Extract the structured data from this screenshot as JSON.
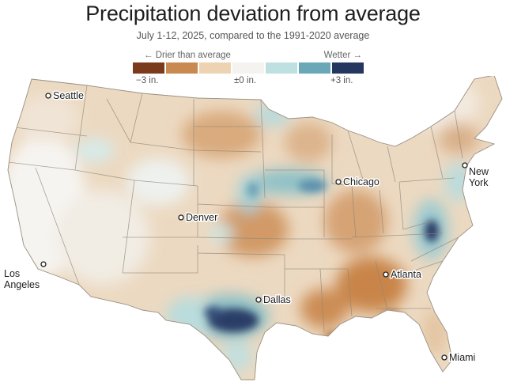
{
  "title": "Precipitation deviation from average",
  "subtitle": "July 1-12, 2025, compared to the 1991-2020 average",
  "legend": {
    "left_label": "← Drier than average",
    "right_label": "Wetter →",
    "ticks": [
      "−3 in.",
      "±0 in.",
      "+3 in."
    ],
    "colors": [
      "#7a3a1c",
      "#c98a52",
      "#edd3b2",
      "#f5f3ef",
      "#bfe0e0",
      "#6aa8b8",
      "#23375f"
    ]
  },
  "cities": [
    {
      "name": "Seattle"
    },
    {
      "name": "Denver"
    },
    {
      "name": "Chicago"
    },
    {
      "name": "New York"
    },
    {
      "name": "Los Angeles"
    },
    {
      "name": "Dallas"
    },
    {
      "name": "Atlanta"
    },
    {
      "name": "Miami"
    }
  ]
}
